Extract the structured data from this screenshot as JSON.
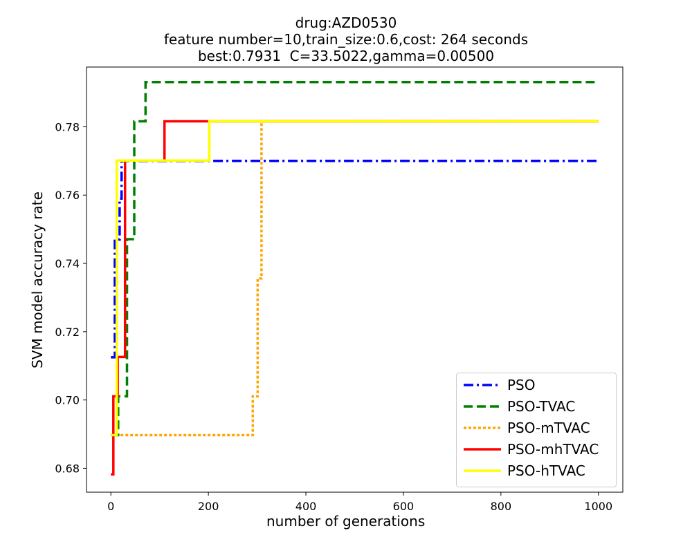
{
  "chart_data": {
    "type": "line",
    "title_lines": [
      "drug:AZD0530",
      "feature number=10,train_size:0.6,cost: 264 seconds",
      "best:0.7931  C=33.5022,gamma=0.00500"
    ],
    "xlabel": "number of generations",
    "ylabel": "SVM model accuracy rate",
    "xlim": [
      -50,
      1050
    ],
    "ylim": [
      0.673,
      0.7975
    ],
    "xticks": [
      0,
      200,
      400,
      600,
      800,
      1000
    ],
    "yticks": [
      0.68,
      0.7,
      0.72,
      0.74,
      0.76,
      0.78
    ],
    "ytick_labels": [
      "0.68",
      "0.70",
      "0.72",
      "0.74",
      "0.76",
      "0.78"
    ],
    "grid": false,
    "legend_position": "lower right",
    "series": [
      {
        "name": "PSO",
        "color": "#0000ff",
        "style": "dashdot",
        "steps": [
          [
            0,
            0.7125
          ],
          [
            8,
            0.747
          ],
          [
            18,
            0.759
          ],
          [
            22,
            0.77
          ],
          [
            1000,
            0.77
          ]
        ]
      },
      {
        "name": "PSO-TVAC",
        "color": "#008000",
        "style": "dashed",
        "steps": [
          [
            0,
            0.6897
          ],
          [
            15,
            0.7011
          ],
          [
            33,
            0.7471
          ],
          [
            48,
            0.7816
          ],
          [
            71,
            0.7931
          ],
          [
            1000,
            0.7931
          ]
        ]
      },
      {
        "name": "PSO-mTVAC",
        "color": "#ffa500",
        "style": "dotted",
        "steps": [
          [
            0,
            0.6897
          ],
          [
            291,
            0.7011
          ],
          [
            301,
            0.7356
          ],
          [
            309,
            0.7816
          ],
          [
            1000,
            0.7816
          ]
        ]
      },
      {
        "name": "PSO-mhTVAC",
        "color": "#ff0000",
        "style": "solid",
        "steps": [
          [
            0,
            0.6782
          ],
          [
            5,
            0.7011
          ],
          [
            14,
            0.7126
          ],
          [
            29,
            0.7701
          ],
          [
            110,
            0.7816
          ],
          [
            1000,
            0.7816
          ]
        ]
      },
      {
        "name": "PSO-hTVAC",
        "color": "#ffff00",
        "style": "solid",
        "steps": [
          [
            0,
            0.6897
          ],
          [
            12,
            0.7701
          ],
          [
            202,
            0.7816
          ],
          [
            1000,
            0.7816
          ]
        ]
      }
    ]
  }
}
